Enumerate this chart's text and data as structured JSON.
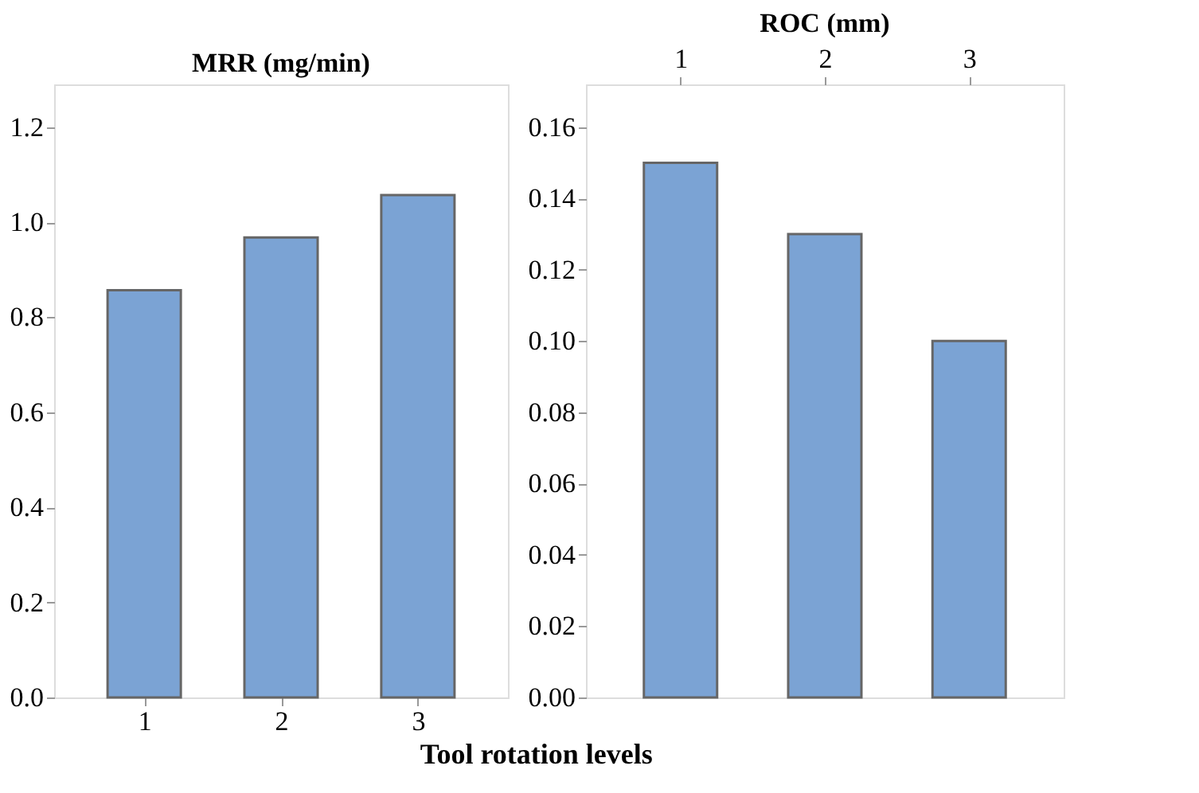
{
  "chart_data": [
    {
      "type": "bar",
      "title": "MRR (mg/min)",
      "xlabel": "Tool rotation levels",
      "categories": [
        "1",
        "2",
        "3"
      ],
      "values": [
        0.857,
        0.968,
        1.057
      ],
      "color": "#7ba3d4",
      "ylim": [
        0,
        1.29
      ],
      "yticks": [
        {
          "value": 0,
          "label": "0.0"
        },
        0.2,
        0.4,
        0.6,
        0.8,
        {
          "value": 1,
          "label": "1.0"
        },
        1.2
      ],
      "grid": false
    },
    {
      "type": "bar",
      "title": "ROC (mm)",
      "categories": [
        "1",
        "2",
        "3"
      ],
      "values": [
        0.15,
        0.13,
        0.1
      ],
      "color": "#7ba3d4",
      "ylim": [
        0,
        0.172
      ],
      "yticks": [
        {
          "value": 0,
          "label": "0.00"
        },
        0.02,
        0.04,
        0.06,
        0.08,
        {
          "value": 0.1,
          "label": "0.10"
        },
        0.12,
        0.14,
        0.16
      ],
      "grid": false
    }
  ]
}
